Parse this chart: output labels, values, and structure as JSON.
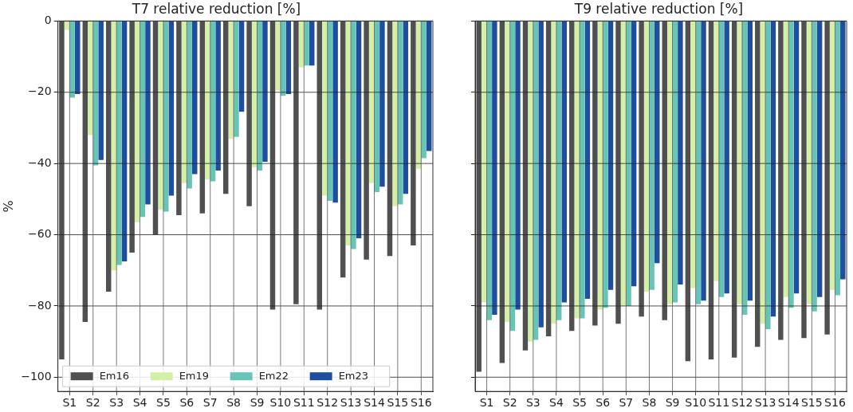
{
  "chart_data": [
    {
      "type": "bar",
      "title": "T7 relative reduction [%]",
      "ylabel": "%",
      "categories": [
        "S1",
        "S2",
        "S3",
        "S4",
        "S5",
        "S6",
        "S7",
        "S8",
        "S9",
        "S10",
        "S11",
        "S12",
        "S13",
        "S14",
        "S15",
        "S16"
      ],
      "series": [
        {
          "name": "Em16",
          "color": "#505050",
          "values": [
            -95,
            -84.5,
            -76,
            -65,
            -60,
            -54.5,
            -54,
            -48.5,
            -52,
            -81,
            -79.5,
            -81,
            -72,
            -67,
            -66,
            -63
          ]
        },
        {
          "name": "Em19",
          "color": "#d4f0a8",
          "values": [
            -2.5,
            -32,
            -70,
            -56.5,
            -53,
            -45.5,
            -44.5,
            -33,
            -41,
            -19.5,
            -13,
            -49,
            -63,
            -45.5,
            -52,
            -41.5
          ]
        },
        {
          "name": "Em22",
          "color": "#66c5b8",
          "values": [
            -21.5,
            -40.5,
            -68.5,
            -55,
            -53.5,
            -47,
            -45,
            -32.5,
            -42,
            -21,
            -12.5,
            -50.5,
            -64,
            -48,
            -51.5,
            -38.5
          ]
        },
        {
          "name": "Em23",
          "color": "#1f4e9f",
          "values": [
            -20.5,
            -39,
            -67.5,
            -51.5,
            -49,
            -43,
            -42,
            -25.5,
            -39.5,
            -20.5,
            -12.5,
            -51,
            -61,
            -46.5,
            -48.5,
            -36.5
          ]
        }
      ],
      "ylim": [
        -104,
        0
      ],
      "yticks": [
        -100,
        -80,
        -60,
        -40,
        -20,
        0
      ],
      "grid": true,
      "legend": "bottom left"
    },
    {
      "type": "bar",
      "title": "T9 relative reduction [%]",
      "categories": [
        "S1",
        "S2",
        "S3",
        "S4",
        "S5",
        "S6",
        "S7",
        "S8",
        "S9",
        "S10",
        "S11",
        "S12",
        "S13",
        "S14",
        "S15",
        "S16"
      ],
      "series": [
        {
          "color": "#505050",
          "values": [
            -98.5,
            -96,
            -92.5,
            -88.5,
            -87,
            -85.5,
            -85,
            -83,
            -84,
            -95.5,
            -95,
            -94.5,
            -91.5,
            -89.5,
            -89,
            -88
          ]
        },
        {
          "color": "#d4f0a8",
          "values": [
            -79,
            -84.5,
            -90,
            -85,
            -83.5,
            -81,
            -80,
            -76,
            -79.5,
            -75,
            -73,
            -79.5,
            -85,
            -77.5,
            -79.5,
            -75.5
          ]
        },
        {
          "color": "#66c5b8",
          "values": [
            -84,
            -87,
            -89.5,
            -84,
            -83.5,
            -80.5,
            -80,
            -75.5,
            -79,
            -79.5,
            -77.5,
            -82.5,
            -86.5,
            -80.5,
            -81.5,
            -77
          ]
        },
        {
          "color": "#1f4e9f",
          "values": [
            -82.5,
            -81,
            -86,
            -79,
            -78,
            -75.5,
            -74.5,
            -68,
            -74,
            -78.5,
            -76.5,
            -78.5,
            -83,
            -76.5,
            -77.5,
            -72.5
          ]
        }
      ],
      "ylim": [
        -104,
        0
      ],
      "yticks": [
        -100,
        -80,
        -60,
        -40,
        -20,
        0
      ],
      "grid": true,
      "tick_labels": "x"
    }
  ]
}
